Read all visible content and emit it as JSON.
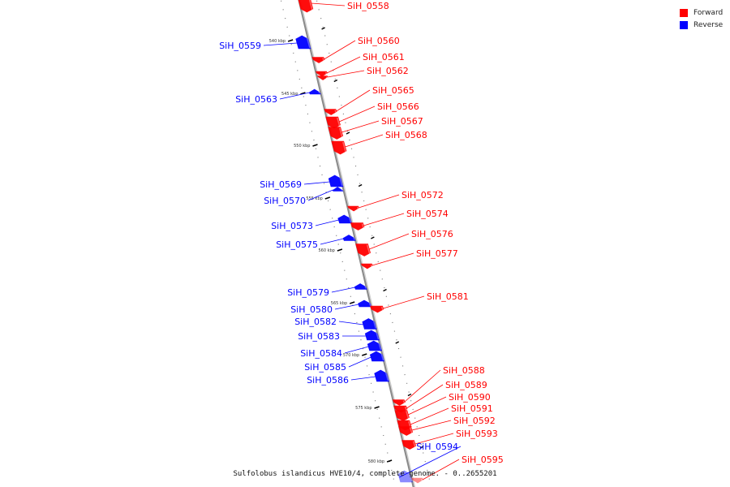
{
  "legend": {
    "forward_label": "Forward",
    "reverse_label": "Reverse",
    "forward_color": "#ff0000",
    "reverse_color": "#0000ff"
  },
  "caption": "Sulfolobus islandicus HVE10/4, complete genome. - 0..2655201",
  "ticks": [
    "540 kbp",
    "545 kbp",
    "550 kbp",
    "555 kbp",
    "560 kbp",
    "565 kbp",
    "570 kbp",
    "575 kbp",
    "580 kbp"
  ],
  "genes": [
    {
      "name": "SiH_0558",
      "strand": "forward"
    },
    {
      "name": "SiH_0559",
      "strand": "reverse"
    },
    {
      "name": "SiH_0560",
      "strand": "forward"
    },
    {
      "name": "SiH_0561",
      "strand": "forward"
    },
    {
      "name": "SiH_0562",
      "strand": "forward"
    },
    {
      "name": "SiH_0563",
      "strand": "reverse"
    },
    {
      "name": "SiH_0565",
      "strand": "forward"
    },
    {
      "name": "SiH_0566",
      "strand": "forward"
    },
    {
      "name": "SiH_0567",
      "strand": "forward"
    },
    {
      "name": "SiH_0568",
      "strand": "forward"
    },
    {
      "name": "SiH_0569",
      "strand": "reverse"
    },
    {
      "name": "SiH_0570",
      "strand": "reverse"
    },
    {
      "name": "SiH_0572",
      "strand": "forward"
    },
    {
      "name": "SiH_0573",
      "strand": "reverse"
    },
    {
      "name": "SiH_0574",
      "strand": "forward"
    },
    {
      "name": "SiH_0575",
      "strand": "reverse"
    },
    {
      "name": "SiH_0576",
      "strand": "forward"
    },
    {
      "name": "SiH_0577",
      "strand": "forward"
    },
    {
      "name": "SiH_0579",
      "strand": "reverse"
    },
    {
      "name": "SiH_0580",
      "strand": "reverse"
    },
    {
      "name": "SiH_0581",
      "strand": "forward"
    },
    {
      "name": "SiH_0582",
      "strand": "reverse"
    },
    {
      "name": "SiH_0583",
      "strand": "reverse"
    },
    {
      "name": "SiH_0584",
      "strand": "reverse"
    },
    {
      "name": "SiH_0585",
      "strand": "reverse"
    },
    {
      "name": "SiH_0586",
      "strand": "reverse"
    },
    {
      "name": "SiH_0588",
      "strand": "forward"
    },
    {
      "name": "SiH_0589",
      "strand": "forward"
    },
    {
      "name": "SiH_0590",
      "strand": "forward"
    },
    {
      "name": "SiH_0591",
      "strand": "forward"
    },
    {
      "name": "SiH_0592",
      "strand": "forward"
    },
    {
      "name": "SiH_0593",
      "strand": "forward"
    },
    {
      "name": "SiH_0594",
      "strand": "reverse"
    },
    {
      "name": "SiH_0595",
      "strand": "forward"
    }
  ]
}
